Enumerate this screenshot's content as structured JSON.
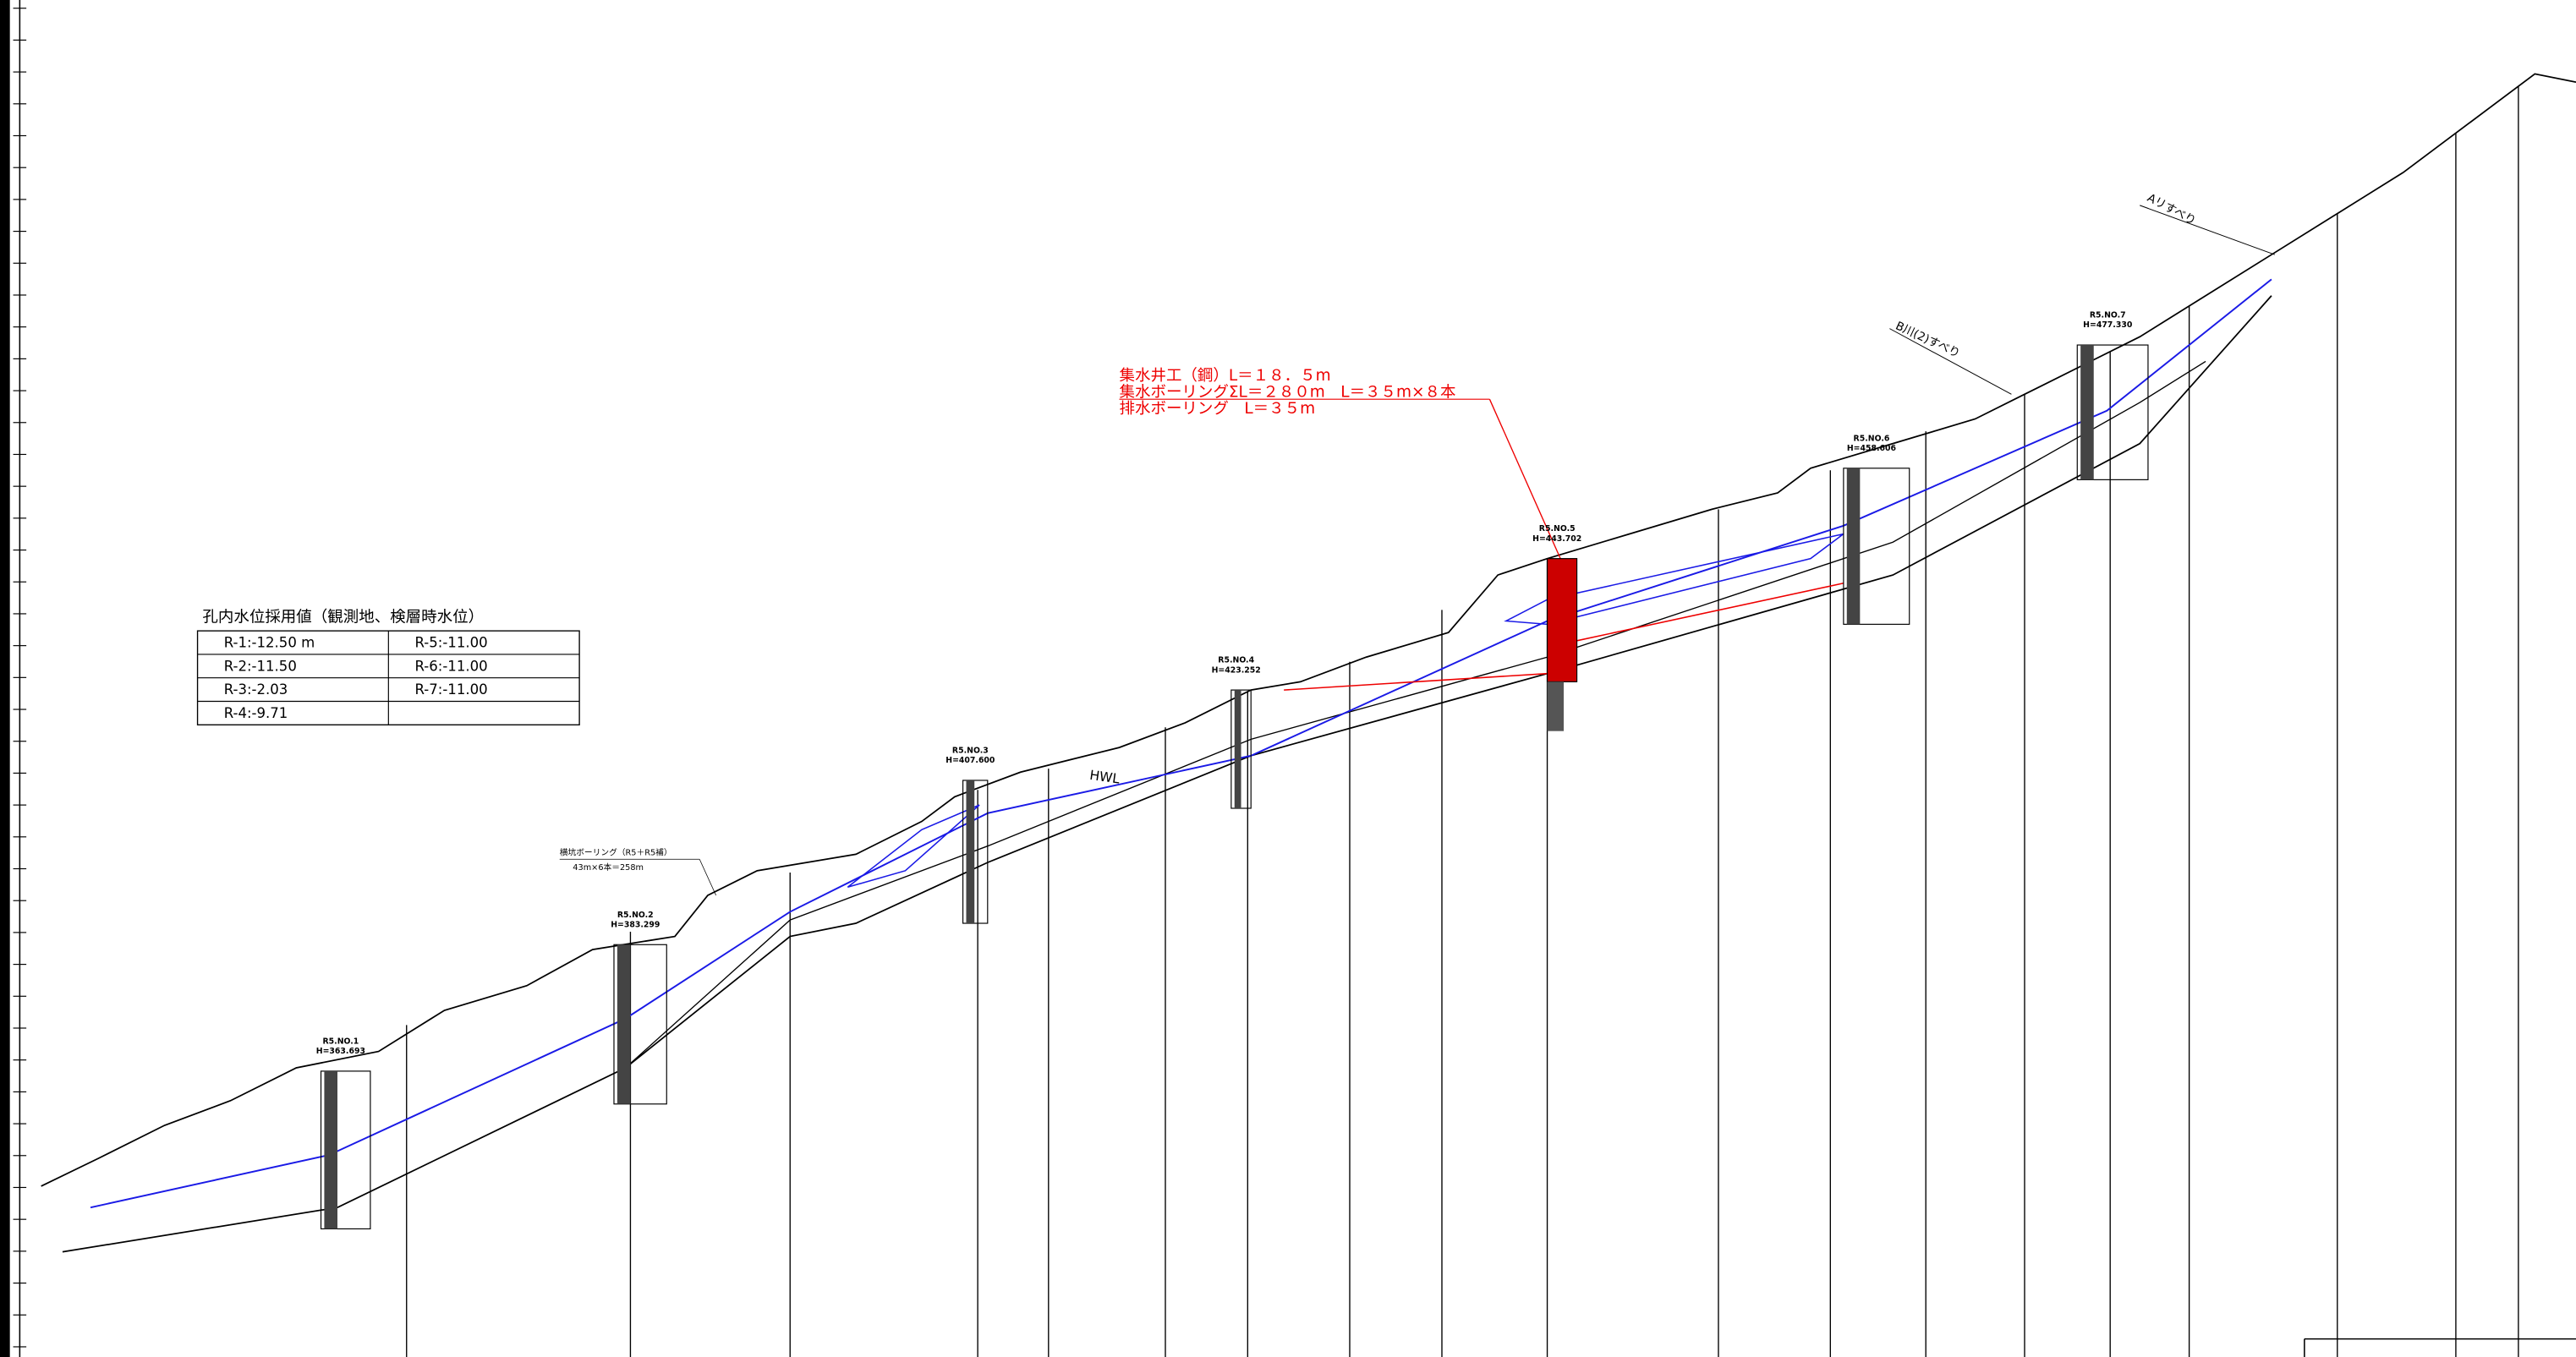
{
  "table": {
    "title": "孔内水位採用値（観測地、検層時水位）",
    "rows": [
      [
        "R-1:-12.50 m",
        "R-5:-11.00"
      ],
      [
        "R-2:-11.50",
        "R-6:-11.00"
      ],
      [
        "R-3:-2.03",
        "R-7:-11.00"
      ],
      [
        "R-4:-9.71"
      ]
    ]
  },
  "annotation": {
    "lines": [
      "集水井工（鋼）L＝１８．５m",
      "集水ボーリングΣL＝２８０m　L＝３５m×８本",
      "排水ボーリング　L＝３５m"
    ]
  },
  "boreholes": [
    {
      "name": "R5.NO.1",
      "elevation": "H=363.693"
    },
    {
      "name": "R5.NO.2",
      "elevation": "H=383.299"
    },
    {
      "name": "R5.NO.3",
      "elevation": "H=407.600"
    },
    {
      "name": "R5.NO.4",
      "elevation": "H=423.252"
    },
    {
      "name": "R5.NO.5",
      "elevation": "H=443.702"
    },
    {
      "name": "R5.NO.6",
      "elevation": "H=458.606"
    },
    {
      "name": "R5.NO.7",
      "elevation": "H=477.330"
    }
  ],
  "labels": {
    "hwl": "HWL",
    "slide_a": "Aリすべり",
    "slide_b": "B川(2)すべり",
    "horizontal_boring": "横坑ボーリング（R5＋R5補）",
    "horizontal_boring_qty": "43m×6本＝258m"
  }
}
